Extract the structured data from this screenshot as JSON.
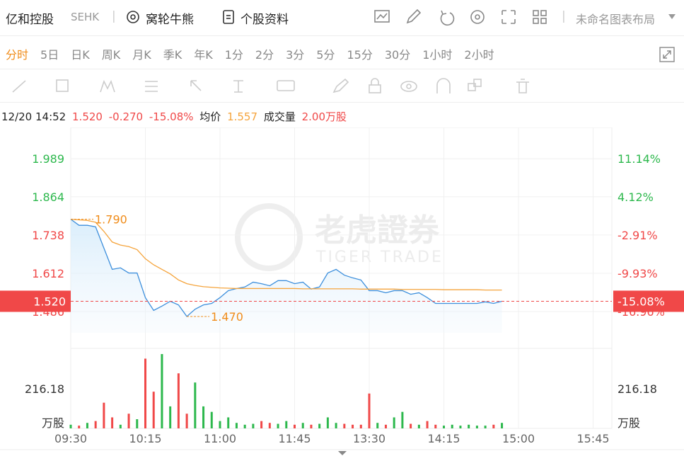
{
  "header": {
    "name": "亿和控股",
    "exchange": "SEHK",
    "links": [
      "窝轮牛熊",
      "个股资料"
    ],
    "layout": "未命名图表布局"
  },
  "periods": [
    "分时",
    "5日",
    "日K",
    "周K",
    "月K",
    "季K",
    "年K",
    "1分",
    "2分",
    "3分",
    "5分",
    "15分",
    "30分",
    "1小时",
    "2小时"
  ],
  "quote": {
    "time": "12/20 14:52",
    "price": "1.520",
    "change": "-0.270",
    "change_pct": "-15.08%",
    "avg_label": "均价",
    "avg": "1.557",
    "vol_label": "成交量",
    "vol": "2.00万股"
  },
  "chart_data": {
    "type": "line",
    "watermark": [
      "老虎證券",
      "TIGER TRADE"
    ],
    "xtick_labels": [
      "09:30",
      "10:15",
      "11:00",
      "11:45",
      "13:30",
      "14:15",
      "15:00",
      "15:45"
    ],
    "ylim": [
      1.365,
      2.092
    ],
    "yticks": [
      1.989,
      1.864,
      1.738,
      1.612,
      1.486
    ],
    "y2lim": [
      -23.74,
      16.87
    ],
    "y2ticks": [
      {
        "value": 11.14,
        "label": "11.14%"
      },
      {
        "value": 4.12,
        "label": "4.12%"
      },
      {
        "value": -2.91,
        "label": "-2.91%"
      },
      {
        "value": -9.93,
        "label": "-9.93%"
      },
      {
        "value": -16.96,
        "label": "-16.96%"
      }
    ],
    "grid": true,
    "rise_color": "#2db84d",
    "fall_color": "#f04848",
    "series": [
      {
        "color": "#3d8fdc",
        "values": [
          1.79,
          1.77,
          1.77,
          1.765,
          1.695,
          1.625,
          1.63,
          1.613,
          1.613,
          1.532,
          1.49,
          1.504,
          1.52,
          1.508,
          1.47,
          1.494,
          1.508,
          1.513,
          1.532,
          1.555,
          1.562,
          1.567,
          1.583,
          1.578,
          1.571,
          1.588,
          1.588,
          1.578,
          1.583,
          1.56,
          1.567,
          1.613,
          1.625,
          1.606,
          1.597,
          1.59,
          1.555,
          1.555,
          1.548,
          1.555,
          1.555,
          1.543,
          1.548,
          1.532,
          1.513,
          1.513,
          1.513,
          1.513,
          1.513,
          1.513,
          1.518,
          1.513,
          1.52
        ]
      },
      {
        "color": "#f5a43c",
        "values": [
          1.79,
          1.788,
          1.786,
          1.78,
          1.75,
          1.715,
          1.705,
          1.7,
          1.69,
          1.66,
          1.64,
          1.625,
          1.61,
          1.59,
          1.578,
          1.572,
          1.568,
          1.566,
          1.564,
          1.563,
          1.562,
          1.562,
          1.562,
          1.562,
          1.562,
          1.562,
          1.562,
          1.562,
          1.561,
          1.561,
          1.561,
          1.561,
          1.561,
          1.561,
          1.561,
          1.56,
          1.56,
          1.56,
          1.56,
          1.56,
          1.559,
          1.559,
          1.559,
          1.559,
          1.559,
          1.558,
          1.558,
          1.558,
          1.558,
          1.558,
          1.557,
          1.557,
          1.557
        ]
      }
    ],
    "high": {
      "value": 1.79,
      "label": "1.790"
    },
    "low": {
      "value": 1.47,
      "label": "1.470"
    },
    "last": {
      "value": 1.52,
      "label": "1.520"
    },
    "last_pct": {
      "value": -15.08,
      "label": "-15.08%"
    },
    "volume": {
      "ylim": [
        0,
        436
      ],
      "yticks": [
        {
          "value": 0,
          "label": "万股"
        },
        216.18
      ],
      "values": [
        20,
        15,
        30,
        40,
        140,
        60,
        20,
        80,
        50,
        380,
        200,
        405,
        120,
        300,
        80,
        250,
        120,
        90,
        40,
        60,
        30,
        20,
        25,
        40,
        30,
        25,
        40,
        20,
        30,
        20,
        25,
        60,
        30,
        25,
        20,
        20,
        190,
        30,
        20,
        60,
        90,
        25,
        20,
        40,
        20,
        15,
        20,
        15,
        20,
        15,
        15,
        20,
        30
      ]
    }
  }
}
